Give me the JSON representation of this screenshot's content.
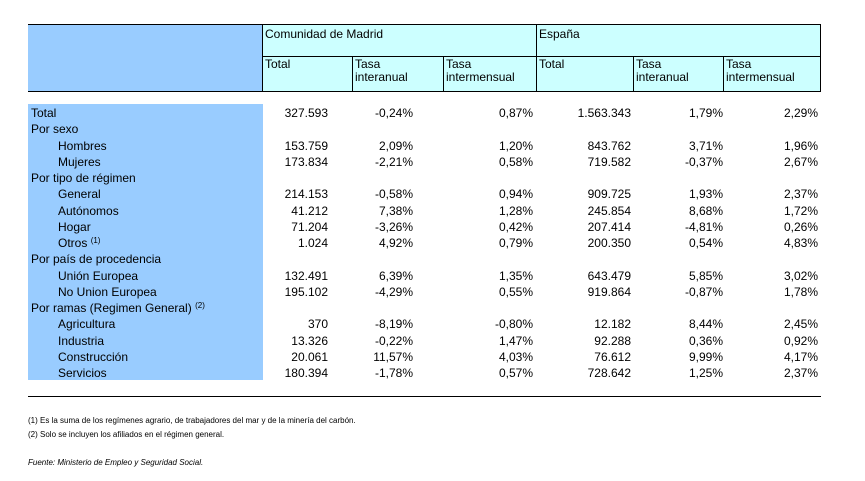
{
  "header": {
    "group_madrid": "Comunidad de Madrid",
    "group_espana": "España",
    "col_total": "Total",
    "col_interanual": "Tasa\ninteranual",
    "col_intermensual": "Tasa\nintermensual"
  },
  "rows": [
    {
      "label": "Total",
      "indent": 0,
      "values": [
        "327.593",
        "-0,24%",
        "0,87%",
        "1.563.343",
        "1,79%",
        "2,29%"
      ]
    },
    {
      "label": "Por sexo",
      "indent": 0,
      "values": []
    },
    {
      "label": "Hombres",
      "indent": 1,
      "values": [
        "153.759",
        "2,09%",
        "1,20%",
        "843.762",
        "3,71%",
        "1,96%"
      ]
    },
    {
      "label": "Mujeres",
      "indent": 1,
      "values": [
        "173.834",
        "-2,21%",
        "0,58%",
        "719.582",
        "-0,37%",
        "2,67%"
      ]
    },
    {
      "label": "Por tipo de régimen",
      "indent": 0,
      "values": []
    },
    {
      "label": "General",
      "indent": 1,
      "values": [
        "214.153",
        "-0,58%",
        "0,94%",
        "909.725",
        "1,93%",
        "2,37%"
      ]
    },
    {
      "label": "Autónomos",
      "indent": 1,
      "values": [
        "41.212",
        "7,38%",
        "1,28%",
        "245.854",
        "8,68%",
        "1,72%"
      ]
    },
    {
      "label": "Hogar",
      "indent": 1,
      "values": [
        "71.204",
        "-3,26%",
        "0,42%",
        "207.414",
        "-4,81%",
        "0,26%"
      ]
    },
    {
      "label": "Otros",
      "note": "(1)",
      "indent": 1,
      "values": [
        "1.024",
        "4,92%",
        "0,79%",
        "200.350",
        "0,54%",
        "4,83%"
      ]
    },
    {
      "label": "Por país de procedencia",
      "indent": 0,
      "values": []
    },
    {
      "label": "Unión Europea",
      "indent": 1,
      "values": [
        "132.491",
        "6,39%",
        "1,35%",
        "643.479",
        "5,85%",
        "3,02%"
      ]
    },
    {
      "label": "No Union Europea",
      "indent": 1,
      "values": [
        "195.102",
        "-4,29%",
        "0,55%",
        "919.864",
        "-0,87%",
        "1,78%"
      ]
    },
    {
      "label": "Por ramas (Regimen General)",
      "note": "(2)",
      "indent": 0,
      "values": []
    },
    {
      "label": "Agricultura",
      "indent": 1,
      "values": [
        "370",
        "-8,19%",
        "-0,80%",
        "12.182",
        "8,44%",
        "2,45%"
      ]
    },
    {
      "label": "Industria",
      "indent": 1,
      "values": [
        "13.326",
        "-0,22%",
        "1,47%",
        "92.288",
        "0,36%",
        "0,92%"
      ]
    },
    {
      "label": "Construcción",
      "indent": 1,
      "values": [
        "20.061",
        "11,57%",
        "4,03%",
        "76.612",
        "9,99%",
        "4,17%"
      ]
    },
    {
      "label": "Servicios",
      "indent": 1,
      "values": [
        "180.394",
        "-1,78%",
        "0,57%",
        "728.642",
        "1,25%",
        "2,37%"
      ]
    }
  ],
  "footnotes": [
    "(1) Es la suma de los regímenes  agrario, de trabajadores del mar y de la minería del carbón.",
    "(2) Solo se incluyen los afiliados en el régimen general."
  ],
  "source": "Fuente: Ministerio de Empleo y Seguridad Social.",
  "colors": {
    "header_left": "#99ccff",
    "header_right": "#ccffff",
    "label_column": "#99ccff"
  }
}
